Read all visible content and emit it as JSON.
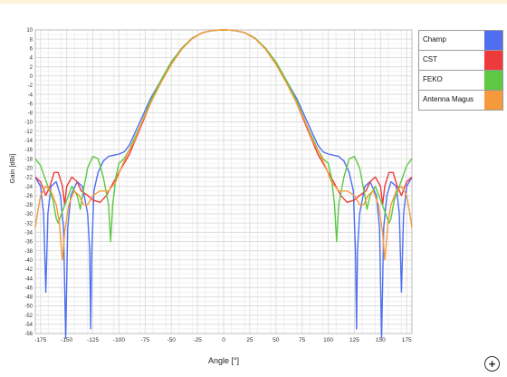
{
  "chart_data": {
    "type": "line",
    "title": "",
    "xlabel": "Angle [°]",
    "ylabel": "Gain [dBi]",
    "xlim": [
      -180,
      180
    ],
    "ylim": [
      -56,
      10
    ],
    "x_ticks": [
      -175,
      -150,
      -125,
      -100,
      -75,
      -50,
      -25,
      0,
      25,
      50,
      75,
      100,
      125,
      150,
      175
    ],
    "y_ticks": [
      10,
      8,
      6,
      4,
      2,
      0,
      -2,
      -4,
      -6,
      -8,
      -10,
      -12,
      -14,
      -16,
      -18,
      -20,
      -22,
      -24,
      -26,
      -28,
      -30,
      -32,
      -34,
      -36,
      -38,
      -40,
      -42,
      -44,
      -46,
      -48,
      -50,
      -52,
      -54,
      -56
    ],
    "grid": true,
    "legend_position": "right",
    "series": [
      {
        "name": "Champ",
        "color": "#4f6ff0",
        "points": [
          [
            -180,
            -22
          ],
          [
            -175,
            -24
          ],
          [
            -172,
            -30
          ],
          [
            -170,
            -47
          ],
          [
            -168,
            -30
          ],
          [
            -165,
            -24
          ],
          [
            -160,
            -23
          ],
          [
            -156,
            -26
          ],
          [
            -153,
            -33
          ],
          [
            -151,
            -57
          ],
          [
            -149,
            -33
          ],
          [
            -146,
            -26
          ],
          [
            -140,
            -23
          ],
          [
            -135,
            -24
          ],
          [
            -130,
            -30
          ],
          [
            -128,
            -38
          ],
          [
            -127,
            -55
          ],
          [
            -126,
            -38
          ],
          [
            -124,
            -25
          ],
          [
            -120,
            -21
          ],
          [
            -115,
            -18.5
          ],
          [
            -110,
            -17.5
          ],
          [
            -100,
            -17
          ],
          [
            -95,
            -16.5
          ],
          [
            -90,
            -15
          ],
          [
            -80,
            -10
          ],
          [
            -70,
            -5
          ],
          [
            -60,
            -1
          ],
          [
            -50,
            3
          ],
          [
            -40,
            6
          ],
          [
            -30,
            8.2
          ],
          [
            -20,
            9.4
          ],
          [
            -10,
            9.9
          ],
          [
            0,
            10
          ],
          [
            10,
            9.9
          ],
          [
            20,
            9.4
          ],
          [
            30,
            8.2
          ],
          [
            40,
            6
          ],
          [
            50,
            3
          ],
          [
            60,
            -1
          ],
          [
            70,
            -5
          ],
          [
            80,
            -10
          ],
          [
            90,
            -15
          ],
          [
            95,
            -16.5
          ],
          [
            100,
            -17
          ],
          [
            110,
            -17.5
          ],
          [
            115,
            -18.5
          ],
          [
            120,
            -21
          ],
          [
            124,
            -25
          ],
          [
            126,
            -38
          ],
          [
            127,
            -55
          ],
          [
            128,
            -38
          ],
          [
            130,
            -30
          ],
          [
            135,
            -24
          ],
          [
            140,
            -23
          ],
          [
            146,
            -26
          ],
          [
            149,
            -33
          ],
          [
            151,
            -57
          ],
          [
            153,
            -33
          ],
          [
            156,
            -26
          ],
          [
            160,
            -23
          ],
          [
            165,
            -24
          ],
          [
            168,
            -30
          ],
          [
            170,
            -47
          ],
          [
            172,
            -30
          ],
          [
            175,
            -24
          ],
          [
            180,
            -22
          ]
        ]
      },
      {
        "name": "CST",
        "color": "#ee3a3a",
        "points": [
          [
            -180,
            -22
          ],
          [
            -175,
            -23
          ],
          [
            -170,
            -26
          ],
          [
            -166,
            -24
          ],
          [
            -162,
            -21
          ],
          [
            -158,
            -21
          ],
          [
            -154,
            -24
          ],
          [
            -152,
            -28
          ],
          [
            -150,
            -24
          ],
          [
            -145,
            -22
          ],
          [
            -140,
            -23
          ],
          [
            -136,
            -25
          ],
          [
            -130,
            -26
          ],
          [
            -125,
            -27
          ],
          [
            -118,
            -27.5
          ],
          [
            -112,
            -26
          ],
          [
            -105,
            -23
          ],
          [
            -100,
            -21
          ],
          [
            -95,
            -19
          ],
          [
            -90,
            -17
          ],
          [
            -80,
            -11.5
          ],
          [
            -70,
            -6
          ],
          [
            -60,
            -1
          ],
          [
            -50,
            3
          ],
          [
            -40,
            6
          ],
          [
            -30,
            8.2
          ],
          [
            -20,
            9.4
          ],
          [
            -10,
            9.9
          ],
          [
            0,
            10
          ],
          [
            10,
            9.9
          ],
          [
            20,
            9.4
          ],
          [
            30,
            8.2
          ],
          [
            40,
            6
          ],
          [
            50,
            3
          ],
          [
            60,
            -1
          ],
          [
            70,
            -6
          ],
          [
            80,
            -11.5
          ],
          [
            90,
            -17
          ],
          [
            95,
            -19
          ],
          [
            100,
            -21
          ],
          [
            105,
            -23
          ],
          [
            112,
            -26
          ],
          [
            118,
            -27.5
          ],
          [
            125,
            -27
          ],
          [
            130,
            -26
          ],
          [
            136,
            -25
          ],
          [
            140,
            -23
          ],
          [
            145,
            -22
          ],
          [
            150,
            -24
          ],
          [
            152,
            -28
          ],
          [
            154,
            -24
          ],
          [
            158,
            -21
          ],
          [
            162,
            -21
          ],
          [
            166,
            -24
          ],
          [
            170,
            -26
          ],
          [
            175,
            -23
          ],
          [
            180,
            -22
          ]
        ]
      },
      {
        "name": "FEKO",
        "color": "#5cc843",
        "points": [
          [
            -180,
            -18
          ],
          [
            -175,
            -19.5
          ],
          [
            -168,
            -24
          ],
          [
            -163,
            -27
          ],
          [
            -160,
            -31
          ],
          [
            -158,
            -32
          ],
          [
            -155,
            -30
          ],
          [
            -150,
            -27
          ],
          [
            -145,
            -24
          ],
          [
            -140,
            -26
          ],
          [
            -137,
            -29
          ],
          [
            -135,
            -26
          ],
          [
            -130,
            -20
          ],
          [
            -125,
            -17.5
          ],
          [
            -120,
            -18
          ],
          [
            -115,
            -22
          ],
          [
            -110,
            -28
          ],
          [
            -108,
            -36
          ],
          [
            -106,
            -28
          ],
          [
            -103,
            -22
          ],
          [
            -100,
            -19
          ],
          [
            -95,
            -18
          ],
          [
            -90,
            -16
          ],
          [
            -80,
            -11
          ],
          [
            -70,
            -5.5
          ],
          [
            -60,
            -1
          ],
          [
            -50,
            3
          ],
          [
            -40,
            6
          ],
          [
            -30,
            8.2
          ],
          [
            -20,
            9.4
          ],
          [
            -10,
            9.9
          ],
          [
            0,
            10
          ],
          [
            10,
            9.9
          ],
          [
            20,
            9.4
          ],
          [
            30,
            8.2
          ],
          [
            40,
            6
          ],
          [
            50,
            3
          ],
          [
            60,
            -1
          ],
          [
            70,
            -5.5
          ],
          [
            80,
            -11
          ],
          [
            90,
            -16
          ],
          [
            95,
            -18
          ],
          [
            100,
            -19
          ],
          [
            103,
            -22
          ],
          [
            106,
            -28
          ],
          [
            108,
            -36
          ],
          [
            110,
            -28
          ],
          [
            115,
            -22
          ],
          [
            120,
            -18
          ],
          [
            125,
            -17.5
          ],
          [
            130,
            -20
          ],
          [
            135,
            -26
          ],
          [
            137,
            -29
          ],
          [
            140,
            -26
          ],
          [
            145,
            -24
          ],
          [
            150,
            -27
          ],
          [
            155,
            -30
          ],
          [
            158,
            -32
          ],
          [
            160,
            -31
          ],
          [
            163,
            -27
          ],
          [
            168,
            -24
          ],
          [
            175,
            -19.5
          ],
          [
            180,
            -18
          ]
        ]
      },
      {
        "name": "Antenna Magus",
        "color": "#f59a3c",
        "points": [
          [
            -180,
            -33
          ],
          [
            -178,
            -30
          ],
          [
            -175,
            -26
          ],
          [
            -170,
            -24
          ],
          [
            -165,
            -25
          ],
          [
            -160,
            -28
          ],
          [
            -157,
            -32
          ],
          [
            -155,
            -38
          ],
          [
            -154,
            -40
          ],
          [
            -152,
            -34
          ],
          [
            -148,
            -28
          ],
          [
            -143,
            -25
          ],
          [
            -138,
            -26
          ],
          [
            -134,
            -28
          ],
          [
            -130,
            -28
          ],
          [
            -125,
            -26
          ],
          [
            -118,
            -25
          ],
          [
            -110,
            -25
          ],
          [
            -103,
            -23
          ],
          [
            -98,
            -20
          ],
          [
            -92,
            -17
          ],
          [
            -85,
            -14
          ],
          [
            -78,
            -10
          ],
          [
            -70,
            -6
          ],
          [
            -60,
            -1.5
          ],
          [
            -50,
            2.5
          ],
          [
            -40,
            5.8
          ],
          [
            -30,
            8.1
          ],
          [
            -20,
            9.4
          ],
          [
            -10,
            9.9
          ],
          [
            0,
            10
          ],
          [
            10,
            9.9
          ],
          [
            20,
            9.4
          ],
          [
            30,
            8.1
          ],
          [
            40,
            5.8
          ],
          [
            50,
            2.5
          ],
          [
            60,
            -1.5
          ],
          [
            70,
            -6
          ],
          [
            78,
            -10
          ],
          [
            85,
            -14
          ],
          [
            92,
            -17
          ],
          [
            98,
            -20
          ],
          [
            103,
            -23
          ],
          [
            110,
            -25
          ],
          [
            118,
            -25
          ],
          [
            125,
            -26
          ],
          [
            130,
            -28
          ],
          [
            134,
            -28
          ],
          [
            138,
            -26
          ],
          [
            143,
            -25
          ],
          [
            148,
            -28
          ],
          [
            152,
            -34
          ],
          [
            154,
            -40
          ],
          [
            155,
            -38
          ],
          [
            157,
            -32
          ],
          [
            160,
            -28
          ],
          [
            165,
            -25
          ],
          [
            170,
            -24
          ],
          [
            175,
            -26
          ],
          [
            178,
            -30
          ],
          [
            180,
            -33
          ]
        ]
      }
    ]
  },
  "ui": {
    "zoom_label": "+"
  }
}
